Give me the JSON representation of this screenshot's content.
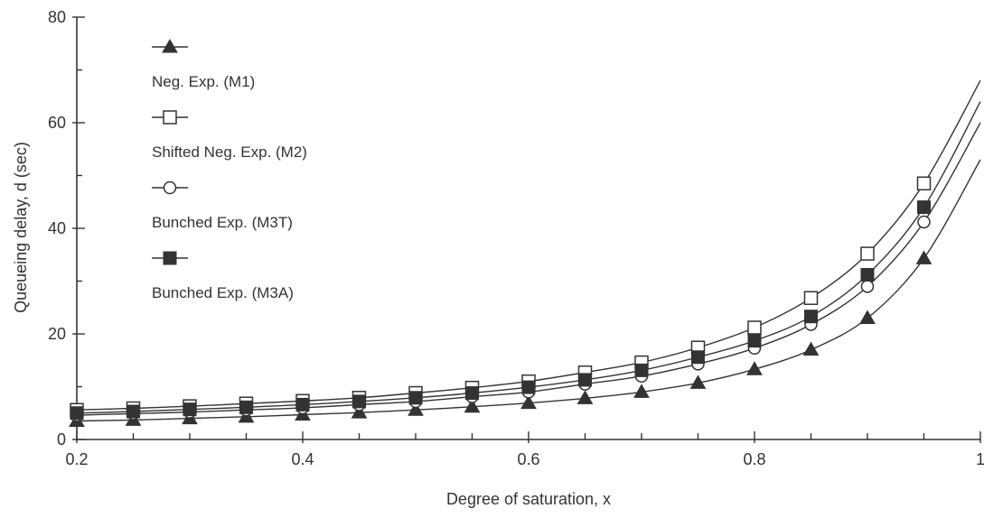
{
  "chart_data": {
    "type": "line",
    "title": "",
    "xlabel": "Degree of saturation, x",
    "ylabel": "Queueing delay, d (sec)",
    "xlim": [
      0.2,
      1.0
    ],
    "ylim": [
      0,
      80
    ],
    "x_ticks": [
      0.2,
      0.4,
      0.6,
      0.8,
      1.0
    ],
    "x_tick_labels": [
      "0.2",
      "0.4",
      "0.6",
      "0.8",
      "1"
    ],
    "y_ticks": [
      0,
      20,
      40,
      60,
      80
    ],
    "y_tick_labels": [
      "0",
      "20",
      "40",
      "60",
      "80"
    ],
    "grid": false,
    "legend_position": "top-left",
    "x": [
      0.2,
      0.25,
      0.3,
      0.35,
      0.4,
      0.45,
      0.5,
      0.55,
      0.6,
      0.65,
      0.7,
      0.75,
      0.8,
      0.85,
      0.9,
      0.95
    ],
    "series": [
      {
        "name": "Neg. Exp. (M1)",
        "marker": "filled-triangle",
        "values": [
          3.5,
          3.7,
          4.0,
          4.3,
          4.7,
          5.1,
          5.6,
          6.2,
          6.9,
          7.8,
          9.0,
          10.7,
          13.3,
          17.0,
          23.0,
          34.3
        ],
        "curve_end": [
          1.0,
          53.0
        ]
      },
      {
        "name": "Shifted Neg. Exp. (M2)",
        "marker": "open-square",
        "values": [
          5.6,
          5.9,
          6.3,
          6.8,
          7.3,
          7.9,
          8.8,
          9.8,
          11.0,
          12.7,
          14.6,
          17.4,
          21.2,
          26.8,
          35.2,
          48.5
        ],
        "curve_end": [
          1.0,
          68.0
        ]
      },
      {
        "name": "Bunched Exp. (M3T)",
        "marker": "open-circle",
        "values": [
          4.6,
          4.9,
          5.2,
          5.6,
          6.0,
          6.6,
          7.2,
          8.1,
          9.0,
          10.5,
          12.0,
          14.3,
          17.3,
          21.8,
          29.0,
          41.2
        ],
        "curve_end": [
          1.0,
          60.0
        ]
      },
      {
        "name": "Bunched Exp. (M3A)",
        "marker": "filled-square",
        "values": [
          5.0,
          5.3,
          5.7,
          6.1,
          6.6,
          7.2,
          7.9,
          8.8,
          9.9,
          11.3,
          13.1,
          15.6,
          18.7,
          23.3,
          31.2,
          44.0
        ],
        "curve_end": [
          1.0,
          64.0
        ]
      }
    ]
  },
  "colors": {
    "ink": "#333333",
    "background": "#ffffff"
  }
}
